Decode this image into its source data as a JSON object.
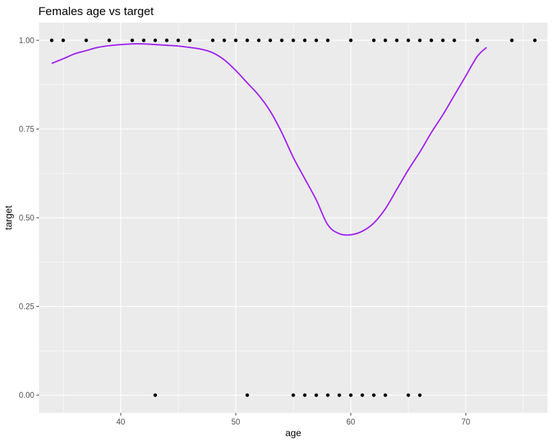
{
  "chart_data": {
    "type": "scatter",
    "title": "Females age vs target",
    "xlabel": "age",
    "ylabel": "target",
    "xlim": [
      32.9,
      77.1
    ],
    "ylim": [
      -0.05,
      1.05
    ],
    "x_ticks": [
      40,
      50,
      60,
      70
    ],
    "x_minor_ticks": [
      35,
      45,
      55,
      65,
      75
    ],
    "y_ticks": [
      0.0,
      0.25,
      0.5,
      0.75,
      1.0
    ],
    "y_tick_labels": [
      "0.00",
      "0.25",
      "0.50",
      "0.75",
      "1.00"
    ],
    "y_minor_ticks": [
      0.125,
      0.375,
      0.625,
      0.875
    ],
    "grid": true,
    "legend": "none",
    "colors": {
      "panel_background": "#ebebeb",
      "grid": "#ffffff",
      "points": "#000000",
      "smooth_line": "#a020f0"
    },
    "points": {
      "target_1_ages": [
        34,
        35,
        37,
        39,
        41,
        42,
        43,
        44,
        45,
        46,
        48,
        49,
        50,
        51,
        52,
        53,
        54,
        55,
        56,
        57,
        58,
        60,
        62,
        63,
        64,
        65,
        66,
        67,
        68,
        69,
        71,
        74,
        76
      ],
      "target_0_ages": [
        43,
        51,
        55,
        56,
        57,
        58,
        59,
        60,
        61,
        62,
        63,
        65,
        66
      ]
    },
    "smooth_curve": {
      "x": [
        34,
        35,
        36,
        37,
        38,
        39,
        40,
        41,
        42,
        43,
        44,
        45,
        46,
        47,
        48,
        49,
        50,
        51,
        52,
        53,
        54,
        55,
        56,
        57,
        58,
        59,
        60,
        61,
        62,
        63,
        64,
        65,
        66,
        67,
        68,
        69,
        70,
        71,
        71.8
      ],
      "y": [
        0.935,
        0.948,
        0.962,
        0.971,
        0.98,
        0.985,
        0.988,
        0.99,
        0.99,
        0.988,
        0.986,
        0.984,
        0.98,
        0.975,
        0.965,
        0.945,
        0.915,
        0.88,
        0.845,
        0.8,
        0.74,
        0.67,
        0.61,
        0.55,
        0.48,
        0.455,
        0.452,
        0.462,
        0.485,
        0.525,
        0.58,
        0.635,
        0.685,
        0.74,
        0.79,
        0.845,
        0.9,
        0.955,
        0.98
      ]
    }
  }
}
